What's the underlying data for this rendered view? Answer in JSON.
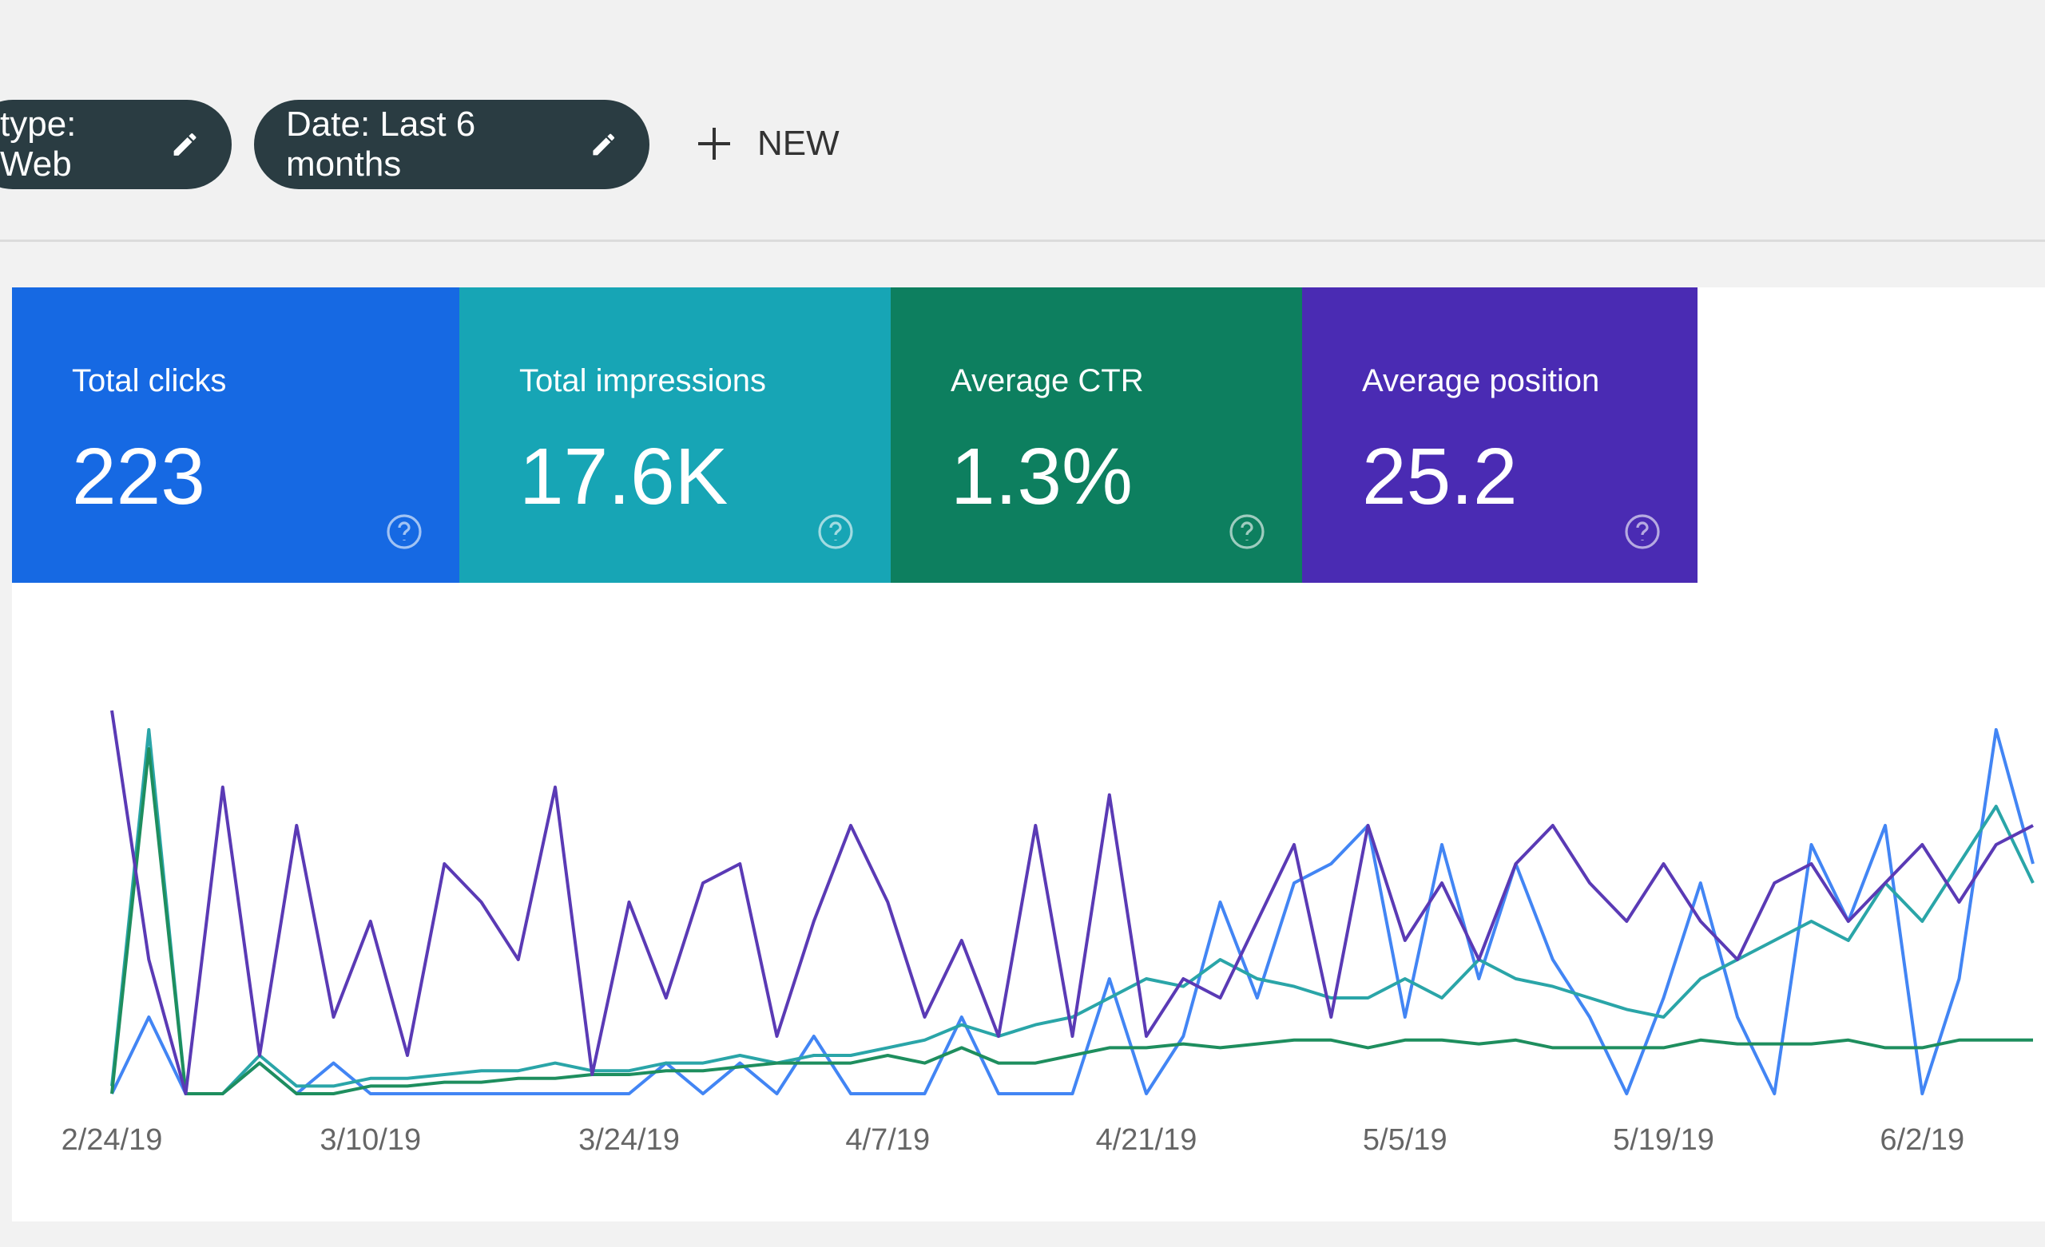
{
  "filters": [
    {
      "label": "type: Web"
    },
    {
      "label": "Date: Last 6 months"
    }
  ],
  "new_button": "NEW",
  "cards": [
    {
      "label": "Total clicks",
      "value": "223",
      "color": "#1669e3",
      "line_color": "#4285f4",
      "series": [
        0,
        20,
        0,
        0,
        8,
        0,
        8,
        0,
        0,
        0,
        0,
        0,
        0,
        0,
        0,
        8,
        0,
        8,
        0,
        15,
        0,
        0,
        0,
        20,
        0,
        0,
        0,
        30,
        0,
        15,
        50,
        25,
        55,
        60,
        70,
        20,
        65,
        30,
        60,
        35,
        20,
        0,
        25,
        55,
        20,
        0,
        65,
        45,
        70,
        0,
        30,
        95,
        60
      ]
    },
    {
      "label": "Total impressions",
      "value": "17.6K",
      "color": "#17a5b5",
      "line_color": "#2aa5a8",
      "series": [
        2,
        95,
        0,
        0,
        10,
        2,
        2,
        4,
        4,
        5,
        6,
        6,
        8,
        6,
        6,
        8,
        8,
        10,
        8,
        10,
        10,
        12,
        14,
        18,
        15,
        18,
        20,
        25,
        30,
        28,
        35,
        30,
        28,
        25,
        25,
        30,
        25,
        35,
        30,
        28,
        25,
        22,
        20,
        30,
        35,
        40,
        45,
        40,
        55,
        45,
        60,
        75,
        55
      ]
    },
    {
      "label": "Average CTR",
      "value": "1.3%",
      "color": "#0d7f5f",
      "line_color": "#1e8e5e",
      "series": [
        0,
        90,
        0,
        0,
        8,
        0,
        0,
        2,
        2,
        3,
        3,
        4,
        4,
        5,
        5,
        6,
        6,
        7,
        8,
        8,
        8,
        10,
        8,
        12,
        8,
        8,
        10,
        12,
        12,
        13,
        12,
        13,
        14,
        14,
        12,
        14,
        14,
        13,
        14,
        12,
        12,
        12,
        12,
        14,
        13,
        13,
        13,
        14,
        12,
        12,
        14,
        14,
        14
      ]
    },
    {
      "label": "Average position",
      "value": "25.2",
      "color": "#4a2bb3",
      "line_color": "#5a3ab5",
      "series": [
        100,
        35,
        0,
        80,
        10,
        70,
        20,
        45,
        10,
        60,
        50,
        35,
        80,
        5,
        50,
        25,
        55,
        60,
        15,
        45,
        70,
        50,
        20,
        40,
        15,
        70,
        15,
        78,
        15,
        30,
        25,
        45,
        65,
        20,
        70,
        40,
        55,
        35,
        60,
        70,
        55,
        45,
        60,
        45,
        35,
        55,
        60,
        45,
        55,
        65,
        50,
        65,
        70
      ]
    }
  ],
  "chart": {
    "type": "line",
    "x_labels": [
      "2/24/19",
      "3/10/19",
      "3/24/19",
      "4/7/19",
      "4/21/19",
      "5/5/19",
      "5/19/19",
      "6/2/19"
    ],
    "ylim": [
      0,
      100
    ]
  }
}
